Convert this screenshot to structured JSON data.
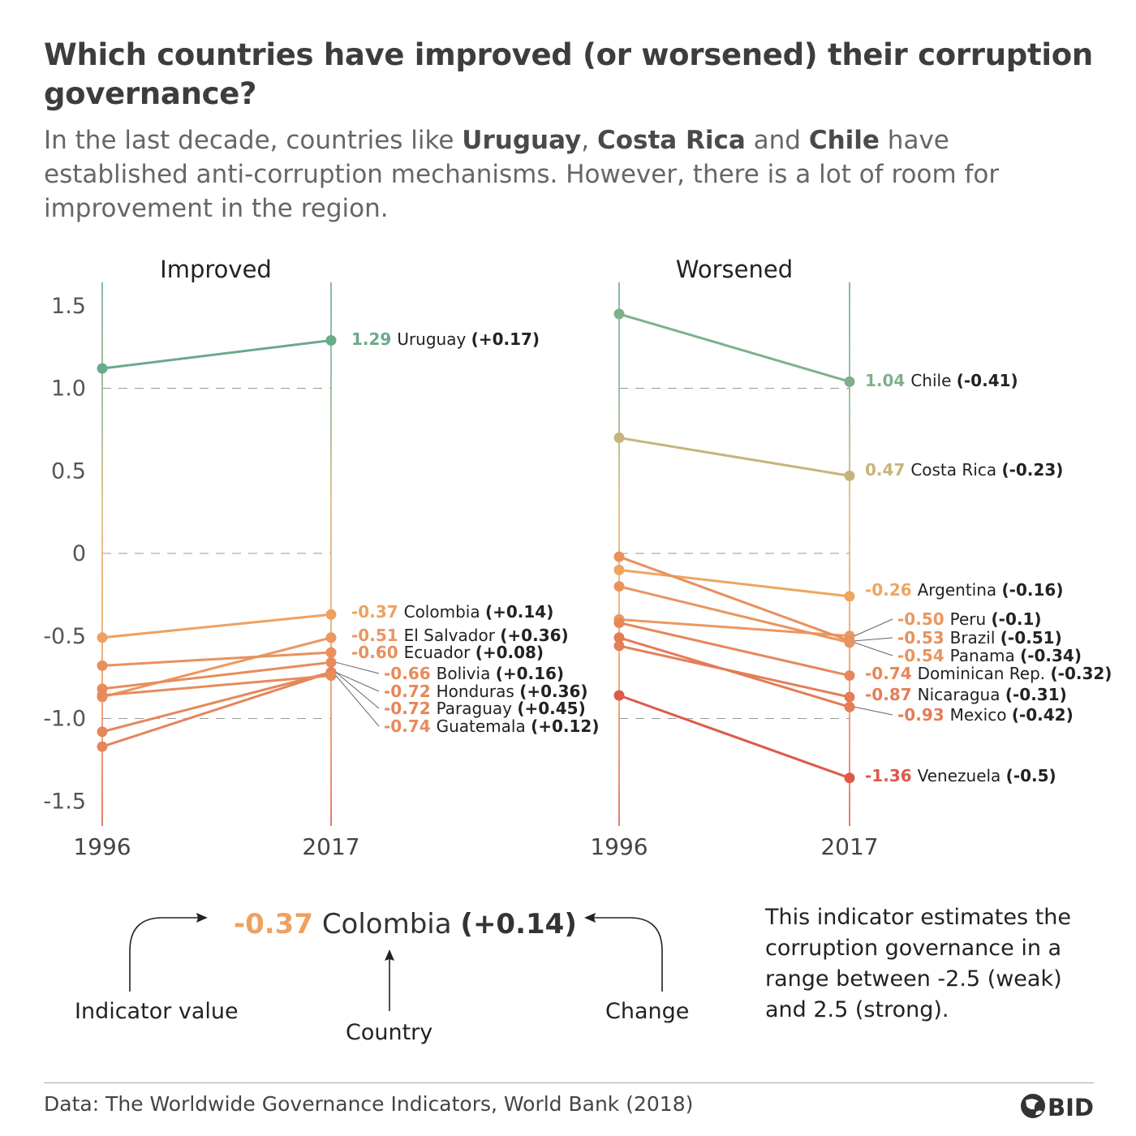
{
  "title": "Which countries have improved (or worsened) their corruption governance?",
  "subtitle": {
    "part1": "In the last decade, countries like ",
    "c1": "Uruguay",
    "sep1": ", ",
    "c2": "Costa Rica",
    "sep2": " and ",
    "c3": "Chile",
    "part2": " have established anti-corruption mechanisms. However, there is a lot of room for improvement in the region."
  },
  "chart_data": {
    "type": "line",
    "subtype": "slopegraph",
    "y_ticks": [
      "1.5",
      "1.0",
      "0.5",
      "0",
      "-0.5",
      "-1.0",
      "-1.5"
    ],
    "y_tick_values": [
      1.5,
      1.0,
      0.5,
      0,
      -0.5,
      -1.0,
      -1.5
    ],
    "ylim": [
      -1.65,
      1.65
    ],
    "x_labels": [
      "1996",
      "2017"
    ],
    "panels": [
      {
        "title": "Improved",
        "series": [
          {
            "country": "Uruguay",
            "v1996": 1.12,
            "v2017": 1.29,
            "value_label": "1.29",
            "change_label": "(+0.17)",
            "color": "#6aaa8a"
          },
          {
            "country": "Colombia",
            "v1996": -0.51,
            "v2017": -0.37,
            "value_label": "-0.37",
            "change_label": "(+0.14)",
            "color": "#eea160"
          },
          {
            "country": "El Salvador",
            "v1996": -0.87,
            "v2017": -0.51,
            "value_label": "-0.51",
            "change_label": "(+0.36)",
            "color": "#ea9760"
          },
          {
            "country": "Ecuador",
            "v1996": -0.68,
            "v2017": -0.6,
            "value_label": "-0.60",
            "change_label": "(+0.08)",
            "color": "#e8905e"
          },
          {
            "country": "Bolivia",
            "v1996": -0.82,
            "v2017": -0.66,
            "value_label": "-0.66",
            "change_label": "(+0.16)",
            "color": "#e88c5c"
          },
          {
            "country": "Honduras",
            "v1996": -1.08,
            "v2017": -0.72,
            "value_label": "-0.72",
            "change_label": "(+0.36)",
            "color": "#e6875a"
          },
          {
            "country": "Paraguay",
            "v1996": -1.17,
            "v2017": -0.72,
            "value_label": "-0.72",
            "change_label": "(+0.45)",
            "color": "#e6845a"
          },
          {
            "country": "Guatemala",
            "v1996": -0.86,
            "v2017": -0.74,
            "value_label": "-0.74",
            "change_label": "(+0.12)",
            "color": "#e88a5c"
          }
        ]
      },
      {
        "title": "Worsened",
        "series": [
          {
            "country": "Chile",
            "v1996": 1.45,
            "v2017": 1.04,
            "value_label": "1.04",
            "change_label": "(-0.41)",
            "color": "#7fb08a"
          },
          {
            "country": "Costa Rica",
            "v1996": 0.7,
            "v2017": 0.47,
            "value_label": "0.47",
            "change_label": "(-0.23)",
            "color": "#c6b47a"
          },
          {
            "country": "Argentina",
            "v1996": -0.1,
            "v2017": -0.26,
            "value_label": "-0.26",
            "change_label": "(-0.16)",
            "color": "#eea560"
          },
          {
            "country": "Peru",
            "v1996": -0.4,
            "v2017": -0.5,
            "value_label": "-0.50",
            "change_label": "(-0.1)",
            "color": "#ea9860"
          },
          {
            "country": "Brazil",
            "v1996": -0.02,
            "v2017": -0.53,
            "value_label": "-0.53",
            "change_label": "(-0.51)",
            "color": "#e8905e"
          },
          {
            "country": "Panama",
            "v1996": -0.2,
            "v2017": -0.54,
            "value_label": "-0.54",
            "change_label": "(-0.34)",
            "color": "#e8945e"
          },
          {
            "country": "Dominican Rep.",
            "v1996": -0.42,
            "v2017": -0.74,
            "value_label": "-0.74",
            "change_label": "(-0.32)",
            "color": "#e6875a"
          },
          {
            "country": "Nicaragua",
            "v1996": -0.56,
            "v2017": -0.87,
            "value_label": "-0.87",
            "change_label": "(-0.31)",
            "color": "#e47e58"
          },
          {
            "country": "Mexico",
            "v1996": -0.51,
            "v2017": -0.93,
            "value_label": "-0.93",
            "change_label": "(-0.42)",
            "color": "#e47c56"
          },
          {
            "country": "Venezuela",
            "v1996": -0.86,
            "v2017": -1.36,
            "value_label": "-1.36",
            "change_label": "(-0.5)",
            "color": "#dd5a4a"
          }
        ]
      }
    ]
  },
  "legend": {
    "example_value": "-0.37",
    "example_country": "Colombia",
    "example_change": "(+0.14)",
    "value_caption": "Indicator value",
    "country_caption": "Country",
    "change_caption": "Change",
    "value_color": "#eea160"
  },
  "note": "This indicator estimates the corruption governance in a range between -2.5 (weak) and 2.5 (strong).",
  "source": "Data: The Worldwide Governance Indicators, World Bank (2018)",
  "logo_text": "BID"
}
